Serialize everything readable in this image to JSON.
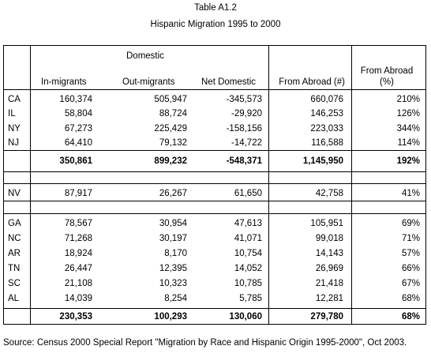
{
  "title": "Table A1.2",
  "subtitle": "Hispanic Migration 1995 to 2000",
  "table": {
    "group_header": "Domestic",
    "columns": [
      "In-migrants",
      "Out-migrants",
      "Net Domestic",
      "From Abroad (#)",
      "From Abroad (%)"
    ],
    "sections": [
      {
        "rows": [
          [
            "CA",
            "160,374",
            "505,947",
            "-345,573",
            "660,076",
            "210%"
          ],
          [
            "IL",
            "58,804",
            "88,724",
            "-29,920",
            "146,253",
            "126%"
          ],
          [
            "NY",
            "67,273",
            "225,429",
            "-158,156",
            "223,033",
            "344%"
          ],
          [
            "NJ",
            "64,410",
            "79,132",
            "-14,722",
            "116,588",
            "114%"
          ]
        ],
        "total": [
          "350,861",
          "899,232",
          "-548,371",
          "1,145,950",
          "192%"
        ]
      },
      {
        "rows": [
          [
            "NV",
            "87,917",
            "26,267",
            "61,650",
            "42,758",
            "41%"
          ]
        ]
      },
      {
        "rows": [
          [
            "GA",
            "78,567",
            "30,954",
            "47,613",
            "105,951",
            "69%"
          ],
          [
            "NC",
            "71,268",
            "30,197",
            "41,071",
            "99,018",
            "71%"
          ],
          [
            "AR",
            "18,924",
            "8,170",
            "10,754",
            "14,143",
            "57%"
          ],
          [
            "TN",
            "26,447",
            "12,395",
            "14,052",
            "26,969",
            "66%"
          ],
          [
            "SC",
            "21,108",
            "10,323",
            "10,785",
            "21,418",
            "67%"
          ],
          [
            "AL",
            "14,039",
            "8,254",
            "5,785",
            "12,281",
            "68%"
          ]
        ],
        "total": [
          "230,353",
          "100,293",
          "130,060",
          "279,780",
          "68%"
        ]
      }
    ]
  },
  "source": "Source: Census 2000 Special Report  \"Migration by Race and Hispanic Origin 1995-2000\", Oct 2003."
}
